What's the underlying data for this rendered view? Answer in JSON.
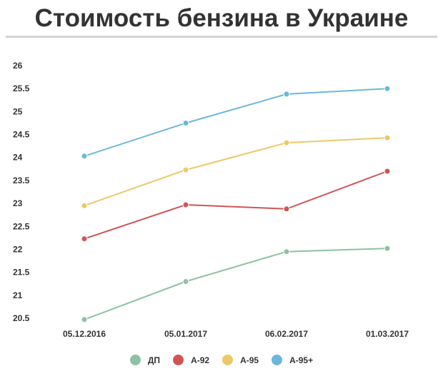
{
  "title": "Стоимость бензина в Украине",
  "chart_data": {
    "type": "line",
    "title": "Стоимость бензина в Украине",
    "xlabel": "",
    "ylabel": "",
    "categories": [
      "05.12.2016",
      "05.01.2017",
      "06.02.2017",
      "01.03.2017"
    ],
    "ylim": [
      20.5,
      26
    ],
    "yticks": [
      "20.5",
      "21",
      "21.5",
      "22",
      "22.5",
      "23",
      "23.5",
      "24",
      "24.5",
      "25",
      "25.5",
      "26"
    ],
    "grid": false,
    "legend": "bottom",
    "series": [
      {
        "name": "ДП",
        "color": "#8fc1a4",
        "values": [
          20.47,
          21.3,
          21.95,
          22.02
        ]
      },
      {
        "name": "А-92",
        "color": "#cf5555",
        "values": [
          22.23,
          22.97,
          22.88,
          23.7
        ]
      },
      {
        "name": "А-95",
        "color": "#ecc967",
        "values": [
          22.95,
          23.73,
          24.32,
          24.43
        ]
      },
      {
        "name": "А-95+",
        "color": "#6bb7dc",
        "values": [
          24.03,
          24.75,
          25.38,
          25.5
        ]
      }
    ]
  }
}
